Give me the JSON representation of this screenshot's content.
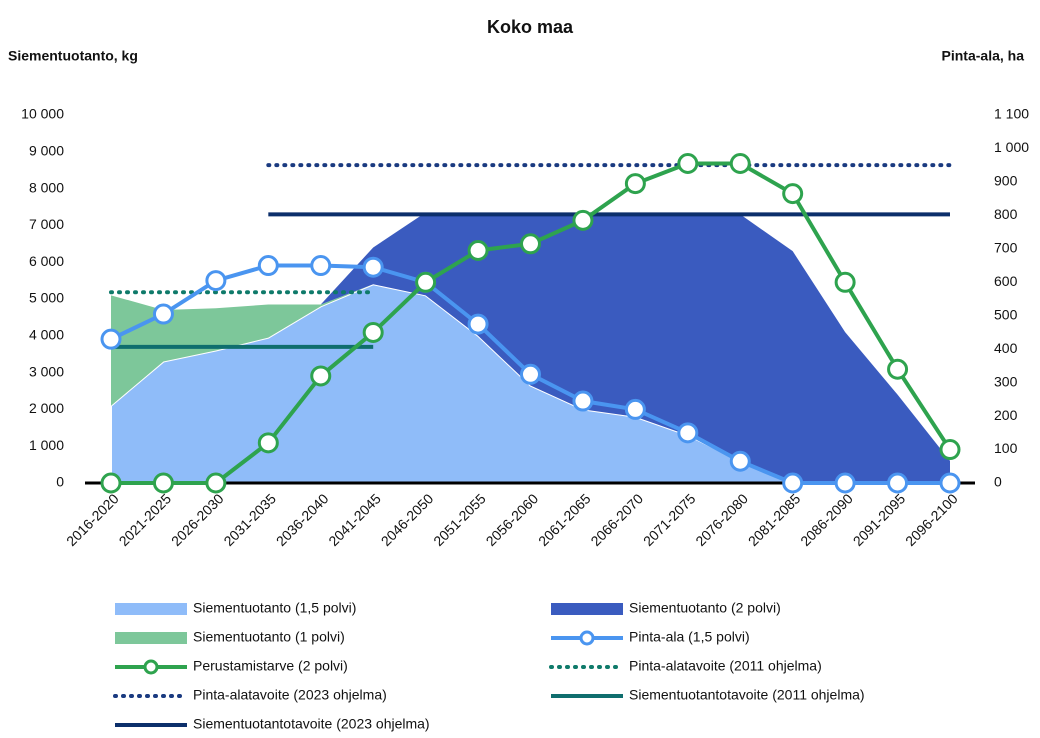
{
  "chart_data": {
    "type": "combo",
    "title": "Koko maa",
    "y_label": "Siementuotanto, kg",
    "y2_label": "Pinta-ala, ha",
    "categories": [
      "2016-2020",
      "2021-2025",
      "2026-2030",
      "2031-2035",
      "2036-2040",
      "2041-2045",
      "2046-2050",
      "2051-2055",
      "2056-2060",
      "2061-2065",
      "2066-2070",
      "2071-2075",
      "2076-2080",
      "2081-2085",
      "2086-2090",
      "2091-2095",
      "2096-2100"
    ],
    "ylim": [
      0,
      10000
    ],
    "yticks": [
      0,
      {
        "value": 1000,
        "label": "1 000"
      },
      {
        "value": 2000,
        "label": "2 000"
      },
      {
        "value": 3000,
        "label": "3 000"
      },
      {
        "value": 4000,
        "label": "4 000"
      },
      {
        "value": 5000,
        "label": "5 000"
      },
      {
        "value": 6000,
        "label": "6 000"
      },
      {
        "value": 7000,
        "label": "7 000"
      },
      {
        "value": 8000,
        "label": "8 000"
      },
      {
        "value": 9000,
        "label": "9 000"
      },
      {
        "value": 10000,
        "label": "10 000"
      }
    ],
    "y2lim": [
      0,
      1100
    ],
    "y2ticks": [
      0,
      100,
      200,
      300,
      400,
      500,
      600,
      700,
      800,
      900,
      {
        "value": 1000,
        "label": "1 000"
      },
      {
        "value": 1100,
        "label": "1 100"
      }
    ],
    "grid": false,
    "legend": "bottom",
    "series": [
      {
        "name": "Siementuotanto (1,5 polvi)",
        "type": "area",
        "stacked": true,
        "axis": "y",
        "color": "#8fbcf9",
        "values": [
          2100,
          3300,
          3600,
          3950,
          4800,
          5400,
          5100,
          4000,
          2650,
          2000,
          1800,
          1300,
          600,
          0,
          0,
          0,
          0
        ]
      },
      {
        "name": "Siementuotanto (2 polvi)",
        "type": "area",
        "stacked": true,
        "stack_order": 3,
        "axis": "y",
        "color": "#3a5bbf",
        "values": [
          0,
          0,
          0,
          0,
          0,
          1000,
          2250,
          3300,
          4650,
          5300,
          5500,
          6000,
          6700,
          6300,
          4100,
          2400,
          600
        ]
      },
      {
        "name": "Siementuotanto (1 polvi)",
        "type": "area",
        "stacked": true,
        "stack_order": 2,
        "axis": "y",
        "color": "#7dc79a",
        "values": [
          3000,
          1400,
          1150,
          900,
          50,
          0,
          0,
          0,
          0,
          0,
          0,
          0,
          0,
          0,
          0,
          0,
          0
        ]
      },
      {
        "name": "Pinta-ala (1,5 polvi)",
        "type": "line",
        "marker": true,
        "axis": "y2",
        "color": "#4a95f0",
        "values": [
          430,
          505,
          605,
          650,
          650,
          645,
          600,
          475,
          325,
          245,
          220,
          150,
          65,
          0,
          0,
          0,
          0
        ]
      },
      {
        "name": "Perustamistarve (2 polvi)",
        "type": "line",
        "marker": true,
        "axis": "y2",
        "color": "#2ea34e",
        "values": [
          0,
          0,
          0,
          120,
          320,
          450,
          600,
          695,
          715,
          785,
          895,
          955,
          955,
          865,
          600,
          340,
          100
        ]
      },
      {
        "name": "Pinta-alatavoite (2011 ohjelma)",
        "type": "line",
        "dash": "dotted",
        "axis": "y2",
        "color": "#0f7a6a",
        "values": [
          570,
          570,
          570,
          570,
          570,
          570,
          null,
          null,
          null,
          null,
          null,
          null,
          null,
          null,
          null,
          null,
          null
        ]
      },
      {
        "name": "Pinta-alatavoite (2023 ohjelma)",
        "type": "line",
        "dash": "dotted",
        "axis": "y2",
        "color": "#1a3a80",
        "values": [
          null,
          null,
          null,
          950,
          950,
          950,
          950,
          950,
          950,
          950,
          950,
          950,
          950,
          950,
          950,
          950,
          950
        ]
      },
      {
        "name": "Siementuotantotavoite (2011 ohjelma)",
        "type": "line",
        "axis": "y",
        "color": "#0f6e6e",
        "values": [
          3700,
          3700,
          3700,
          3700,
          3700,
          3700,
          null,
          null,
          null,
          null,
          null,
          null,
          null,
          null,
          null,
          null,
          null
        ]
      },
      {
        "name": "Siementuotantotavoite (2023 ohjelma)",
        "type": "line",
        "axis": "y",
        "color": "#0c2f6b",
        "values": [
          null,
          null,
          null,
          7300,
          7300,
          7300,
          7300,
          7300,
          7300,
          7300,
          7300,
          7300,
          7300,
          7300,
          7300,
          7300,
          7300
        ]
      }
    ]
  }
}
